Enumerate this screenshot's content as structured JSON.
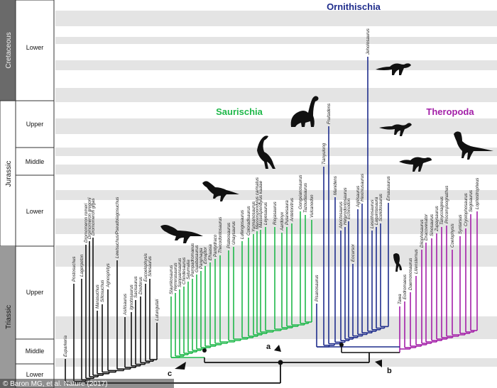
{
  "periods": [
    {
      "name": "Cretaceous",
      "epochs": [
        "Lower"
      ]
    },
    {
      "name": "Jurassic",
      "epochs": [
        "Upper",
        "Middle",
        "Lower"
      ]
    },
    {
      "name": "Triassic",
      "epochs": [
        "Upper",
        "Middle",
        "Lower"
      ]
    }
  ],
  "clades": {
    "ornithischia": {
      "label": "Ornithischia",
      "color": "#1f2d8c"
    },
    "saurischia": {
      "label": "Saurischia",
      "color": "#1fb84a"
    },
    "theropoda": {
      "label": "Theropoda",
      "color": "#a31fa8"
    }
  },
  "node_labels": [
    "a",
    "b",
    "c"
  ],
  "credit": "© Baron MG, et al. Nature (2017)",
  "taxa": {
    "outgroup": [
      "Euparkeria",
      "Postosuchus",
      "Lagerpeton",
      "Dromomeron romeri",
      "Dromomeron gregorii",
      "Dromomeron gigas",
      "Marasuchus",
      "Sillosuchus",
      "Agnosphitys",
      "Lewisuchus/Pseudolagosuchus",
      "Asilisaurus",
      "Ignotosaurus",
      "Sacisaurus",
      "Diodorus",
      "Eucoelophysis",
      "Silesaurus",
      "Lutungutali"
    ],
    "saurischia": [
      "Staurikosaurus",
      "Herrerasaurus",
      "Sanjuansaurus",
      "Chindesaurus",
      "Saturnalia",
      "Pampadromaeus",
      "Guaibasaurus",
      "Panphagia",
      "Eoraptor",
      "Efraasia",
      "Pantydraco",
      "Thecodontosaurus",
      "Plateosaurus",
      "Unaysaurus",
      "Lufengosaurus",
      "Coloradisaurus",
      "Yunnanosaurus",
      "Massospondylus carinatus",
      "Massospondylus kaalae",
      "Leyesaurus",
      "Riojasaurus",
      "Aardonyx",
      "Pulanesaura",
      "Antetonitrus",
      "Gongxianosaurus",
      "Tazoudasaurus",
      "Vulcanodon"
    ],
    "ornithischia": [
      "Pisanosaurus",
      "Tianyulong",
      "Fruitadens",
      "Manidens",
      "Abrictosaurus",
      "Heterodontosaurus",
      "Echinodon",
      "Eocursor",
      "Agilisaurus",
      "Hexinlusaurus",
      "Jeholosaurus",
      "Lesothosaurus",
      "Laquintasaura",
      "Scelidosaurus",
      "Emausaurus"
    ],
    "theropoda": [
      "Tawa",
      "Eodromaeus",
      "Daemonosaurus",
      "Liliensternus",
      "Dilophosaurus",
      "Dracovenator",
      "Sinosaurus",
      "Zupaysaurus",
      "Tanycolagreus",
      "Procompsognathus",
      "Coelophysis",
      "Syntarsus",
      "Cryolophosaurus",
      "Segisaurus",
      "Lophostropheus"
    ]
  }
}
